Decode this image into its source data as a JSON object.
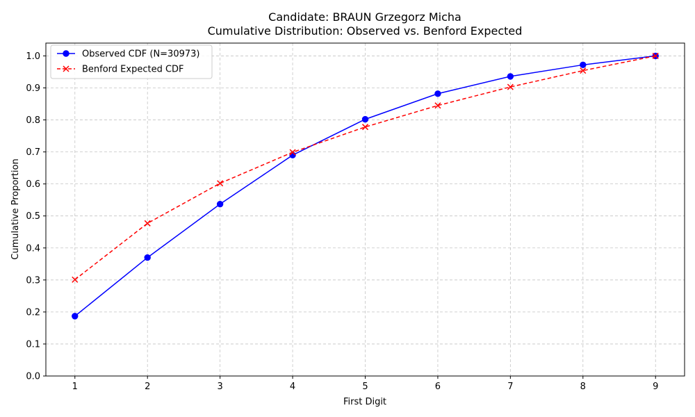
{
  "chart_data": {
    "type": "line",
    "title_line1": "Candidate: BRAUN Grzegorz Micha",
    "title_line2": "Cumulative Distribution: Observed vs. Benford Expected",
    "xlabel": "First Digit",
    "ylabel": "Cumulative Proportion",
    "x": [
      1,
      2,
      3,
      4,
      5,
      6,
      7,
      8,
      9
    ],
    "xlim": [
      0.6,
      9.4
    ],
    "ylim": [
      0,
      1.04
    ],
    "yticks": [
      0.0,
      0.1,
      0.2,
      0.3,
      0.4,
      0.5,
      0.6,
      0.7,
      0.8,
      0.9,
      1.0
    ],
    "ytick_labels": [
      "0.0",
      "0.1",
      "0.2",
      "0.3",
      "0.4",
      "0.5",
      "0.6",
      "0.7",
      "0.8",
      "0.9",
      "1.0"
    ],
    "xtick_labels": [
      "1",
      "2",
      "3",
      "4",
      "5",
      "6",
      "7",
      "8",
      "9"
    ],
    "grid": true,
    "legend_position": "top-left",
    "series": [
      {
        "name": "Observed CDF (N=30973)",
        "color": "#0000ff",
        "marker": "circle",
        "linestyle": "solid",
        "values": [
          0.187,
          0.37,
          0.537,
          0.69,
          0.802,
          0.882,
          0.936,
          0.972,
          1.0
        ]
      },
      {
        "name": "Benford Expected CDF",
        "color": "#ff0000",
        "marker": "x",
        "linestyle": "dashed",
        "values": [
          0.301,
          0.477,
          0.602,
          0.699,
          0.778,
          0.845,
          0.903,
          0.954,
          1.0
        ]
      }
    ]
  }
}
